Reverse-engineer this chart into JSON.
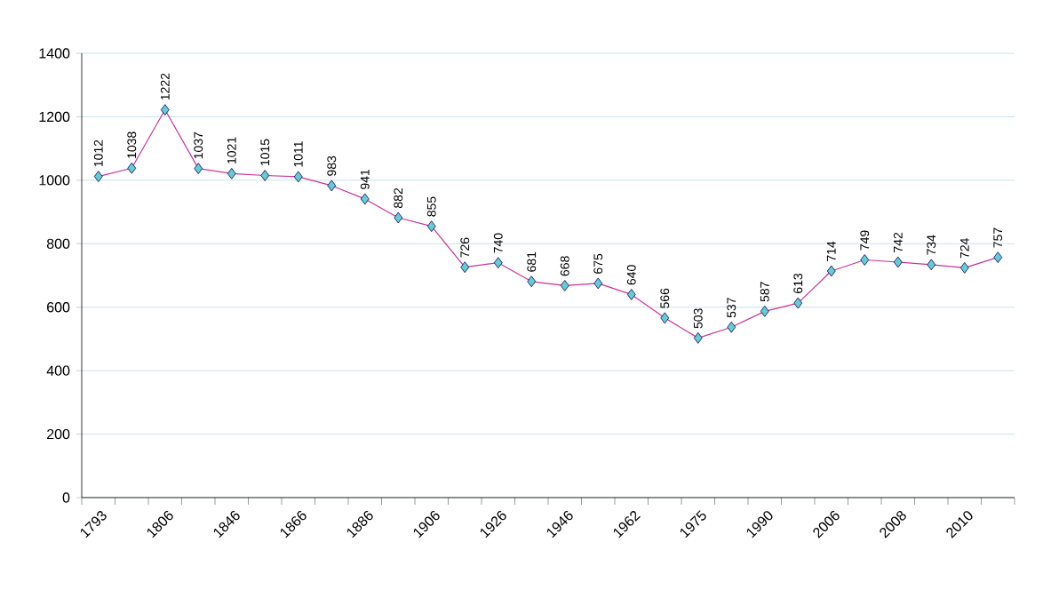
{
  "chart_data": {
    "type": "line",
    "categories": [
      "1793",
      null,
      "1806",
      null,
      "1846",
      null,
      "1866",
      null,
      "1886",
      null,
      "1906",
      null,
      "1926",
      null,
      "1946",
      null,
      "1962",
      null,
      "1975",
      null,
      "1990",
      null,
      "2006",
      null,
      "2008",
      null,
      "2010",
      null
    ],
    "values": [
      1012,
      1038,
      1222,
      1037,
      1021,
      1015,
      1011,
      983,
      941,
      882,
      855,
      726,
      740,
      681,
      668,
      675,
      640,
      566,
      503,
      537,
      587,
      613,
      714,
      749,
      742,
      734,
      724,
      757
    ],
    "color": "#cc3399",
    "marker": "diamond",
    "ylim": [
      0,
      1400
    ],
    "yticks": [
      0,
      200,
      400,
      600,
      800,
      1000,
      1200,
      1400
    ],
    "grid": "y",
    "data_labels": true,
    "line_style": "solid"
  }
}
